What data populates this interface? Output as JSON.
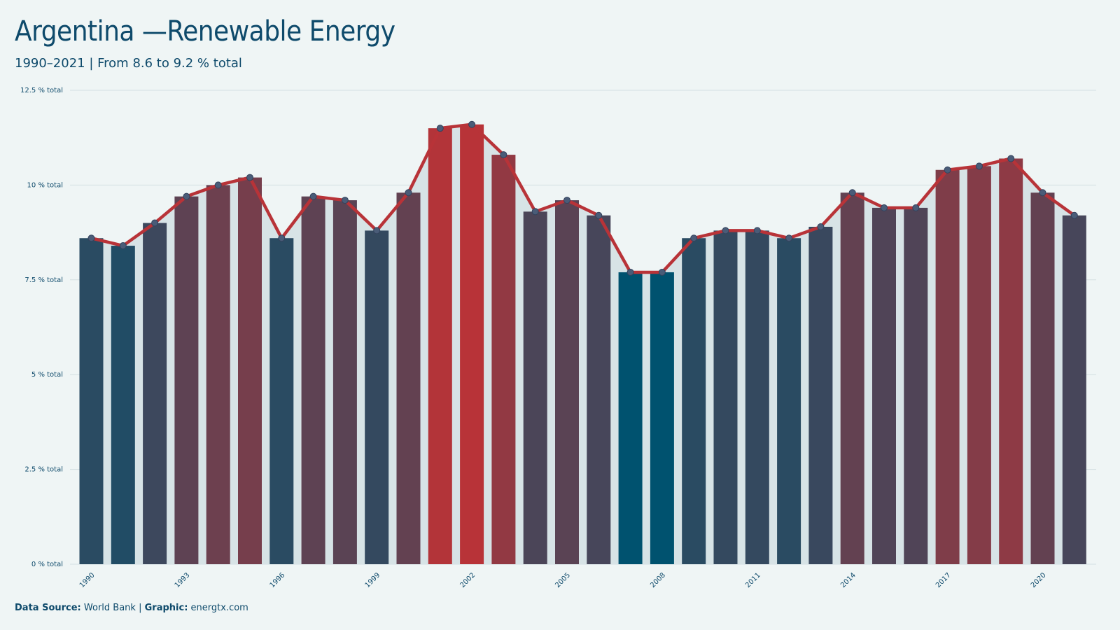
{
  "header": {
    "title": "Argentina —Renewable Energy",
    "subtitle": "1990–2021 | From 8.6 to 9.2 % total"
  },
  "footer": {
    "source_label": "Data Source:",
    "source_value": "World Bank",
    "separator": "|",
    "graphic_label": "Graphic:",
    "graphic_value": "energtx.com"
  },
  "colors": {
    "background": "#eff5f5",
    "text": "#0e4a6b",
    "line": "#b83338",
    "low": "#00526f",
    "high": "#b83338",
    "area": "#d7e3e6",
    "grid": "#d3dfe2",
    "marker_fill": "#4a5c78"
  },
  "chart_data": {
    "type": "bar",
    "title": "Argentina —Renewable Energy",
    "subtitle": "1990–2021 | From 8.6 to 9.2 % total",
    "xlabel": "",
    "ylabel": "",
    "unit": "% total",
    "x": [
      1990,
      1991,
      1992,
      1993,
      1994,
      1995,
      1996,
      1997,
      1998,
      1999,
      2000,
      2001,
      2002,
      2003,
      2004,
      2005,
      2006,
      2007,
      2008,
      2009,
      2010,
      2011,
      2012,
      2013,
      2014,
      2015,
      2016,
      2017,
      2018,
      2019,
      2020,
      2021
    ],
    "values": [
      8.6,
      8.4,
      9.0,
      9.7,
      10.0,
      10.2,
      8.6,
      9.7,
      9.6,
      8.8,
      9.8,
      11.5,
      11.6,
      10.8,
      9.3,
      9.6,
      9.2,
      7.7,
      7.7,
      8.6,
      8.8,
      8.8,
      8.6,
      8.9,
      9.8,
      9.4,
      9.4,
      10.4,
      10.5,
      10.7,
      9.8,
      9.2
    ],
    "ylim": [
      0,
      12.5
    ],
    "yticks": [
      0,
      2.5,
      5,
      7.5,
      10,
      12.5
    ],
    "ytick_labels": [
      "0 % total",
      "2.5 % total",
      "5 % total",
      "7.5 % total",
      "10 % total",
      "12.5 % total"
    ],
    "xtick_labels": [
      "1990",
      "1993",
      "1996",
      "1999",
      "2002",
      "2005",
      "2008",
      "2011",
      "2014",
      "2017",
      "2020"
    ],
    "overlay": "line with markers and shaded area",
    "grid": true,
    "legend": "none"
  }
}
